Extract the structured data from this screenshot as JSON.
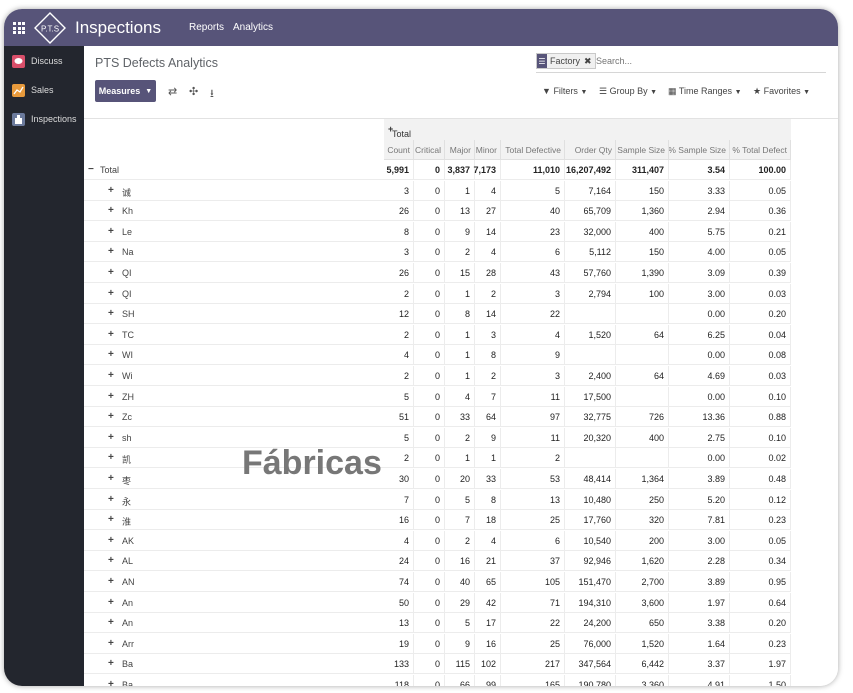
{
  "topbar": {
    "app_title": "Inspections",
    "menu": [
      "Reports",
      "Analytics"
    ],
    "logo_text": "P.T.S"
  },
  "sidebar": {
    "items": [
      {
        "label": "Discuss",
        "color": "#d94f6a"
      },
      {
        "label": "Sales",
        "color": "#e89a3c"
      },
      {
        "label": "Inspections",
        "color": "#6b7a9c"
      }
    ]
  },
  "control_panel": {
    "title": "PTS Defects Analytics",
    "facet_label": "Factory",
    "search_placeholder": "Search...",
    "measures_label": "Measures",
    "filters_label": "Filters",
    "groupby_label": "Group By",
    "timeranges_label": "Time Ranges",
    "favorites_label": "Favorites"
  },
  "pivot": {
    "col_group_label": "Total",
    "measures": [
      "Count",
      "Critical",
      "Major",
      "Minor",
      "Total Defective",
      "Order Qty",
      "Sample Size",
      "% Sample Size",
      "% Total Defect"
    ],
    "total_row": {
      "label": "Total",
      "values": [
        "5,991",
        "0",
        "3,837",
        "7,173",
        "11,010",
        "16,207,492",
        "311,407",
        "3.54",
        "100.00"
      ]
    },
    "rows": [
      {
        "label": "诚",
        "values": [
          "3",
          "0",
          "1",
          "4",
          "5",
          "7,164",
          "150",
          "3.33",
          "0.05"
        ]
      },
      {
        "label": "Kh",
        "values": [
          "26",
          "0",
          "13",
          "27",
          "40",
          "65,709",
          "1,360",
          "2.94",
          "0.36"
        ]
      },
      {
        "label": "Le",
        "values": [
          "8",
          "0",
          "9",
          "14",
          "23",
          "32,000",
          "400",
          "5.75",
          "0.21"
        ]
      },
      {
        "label": "Na",
        "values": [
          "3",
          "0",
          "2",
          "4",
          "6",
          "5,112",
          "150",
          "4.00",
          "0.05"
        ]
      },
      {
        "label": "QI",
        "values": [
          "26",
          "0",
          "15",
          "28",
          "43",
          "57,760",
          "1,390",
          "3.09",
          "0.39"
        ]
      },
      {
        "label": "QI",
        "values": [
          "2",
          "0",
          "1",
          "2",
          "3",
          "2,794",
          "100",
          "3.00",
          "0.03"
        ]
      },
      {
        "label": "SH",
        "values": [
          "12",
          "0",
          "8",
          "14",
          "22",
          "",
          "",
          "0.00",
          "0.20"
        ]
      },
      {
        "label": "TC",
        "values": [
          "2",
          "0",
          "1",
          "3",
          "4",
          "1,520",
          "64",
          "6.25",
          "0.04"
        ]
      },
      {
        "label": "WI",
        "values": [
          "4",
          "0",
          "1",
          "8",
          "9",
          "",
          "",
          "0.00",
          "0.08"
        ]
      },
      {
        "label": "Wi",
        "values": [
          "2",
          "0",
          "1",
          "2",
          "3",
          "2,400",
          "64",
          "4.69",
          "0.03"
        ]
      },
      {
        "label": "ZH",
        "values": [
          "5",
          "0",
          "4",
          "7",
          "11",
          "17,500",
          "",
          "0.00",
          "0.10"
        ]
      },
      {
        "label": "Zc",
        "values": [
          "51",
          "0",
          "33",
          "64",
          "97",
          "32,775",
          "726",
          "13.36",
          "0.88"
        ]
      },
      {
        "label": "sh",
        "values": [
          "5",
          "0",
          "2",
          "9",
          "11",
          "20,320",
          "400",
          "2.75",
          "0.10"
        ]
      },
      {
        "label": "凯",
        "values": [
          "2",
          "0",
          "1",
          "1",
          "2",
          "",
          "",
          "0.00",
          "0.02"
        ]
      },
      {
        "label": "枣",
        "values": [
          "30",
          "0",
          "20",
          "33",
          "53",
          "48,414",
          "1,364",
          "3.89",
          "0.48"
        ]
      },
      {
        "label": "永",
        "values": [
          "7",
          "0",
          "5",
          "8",
          "13",
          "10,480",
          "250",
          "5.20",
          "0.12"
        ]
      },
      {
        "label": "淮",
        "values": [
          "16",
          "0",
          "7",
          "18",
          "25",
          "17,760",
          "320",
          "7.81",
          "0.23"
        ]
      },
      {
        "label": "AK",
        "values": [
          "4",
          "0",
          "2",
          "4",
          "6",
          "10,540",
          "200",
          "3.00",
          "0.05"
        ]
      },
      {
        "label": "AL",
        "values": [
          "24",
          "0",
          "16",
          "21",
          "37",
          "92,946",
          "1,620",
          "2.28",
          "0.34"
        ]
      },
      {
        "label": "AN",
        "values": [
          "74",
          "0",
          "40",
          "65",
          "105",
          "151,470",
          "2,700",
          "3.89",
          "0.95"
        ]
      },
      {
        "label": "An",
        "values": [
          "50",
          "0",
          "29",
          "42",
          "71",
          "194,310",
          "3,600",
          "1.97",
          "0.64"
        ]
      },
      {
        "label": "An",
        "values": [
          "13",
          "0",
          "5",
          "17",
          "22",
          "24,200",
          "650",
          "3.38",
          "0.20"
        ]
      },
      {
        "label": "Arr",
        "values": [
          "19",
          "0",
          "9",
          "16",
          "25",
          "76,000",
          "1,520",
          "1.64",
          "0.23"
        ]
      },
      {
        "label": "Ba",
        "values": [
          "133",
          "0",
          "115",
          "102",
          "217",
          "347,564",
          "6,442",
          "3.37",
          "1.97"
        ]
      },
      {
        "label": "Ba",
        "values": [
          "118",
          "0",
          "66",
          "99",
          "165",
          "190,780",
          "3,360",
          "4.91",
          "1.50"
        ]
      }
    ]
  },
  "overlay": {
    "text": "Fábricas"
  }
}
